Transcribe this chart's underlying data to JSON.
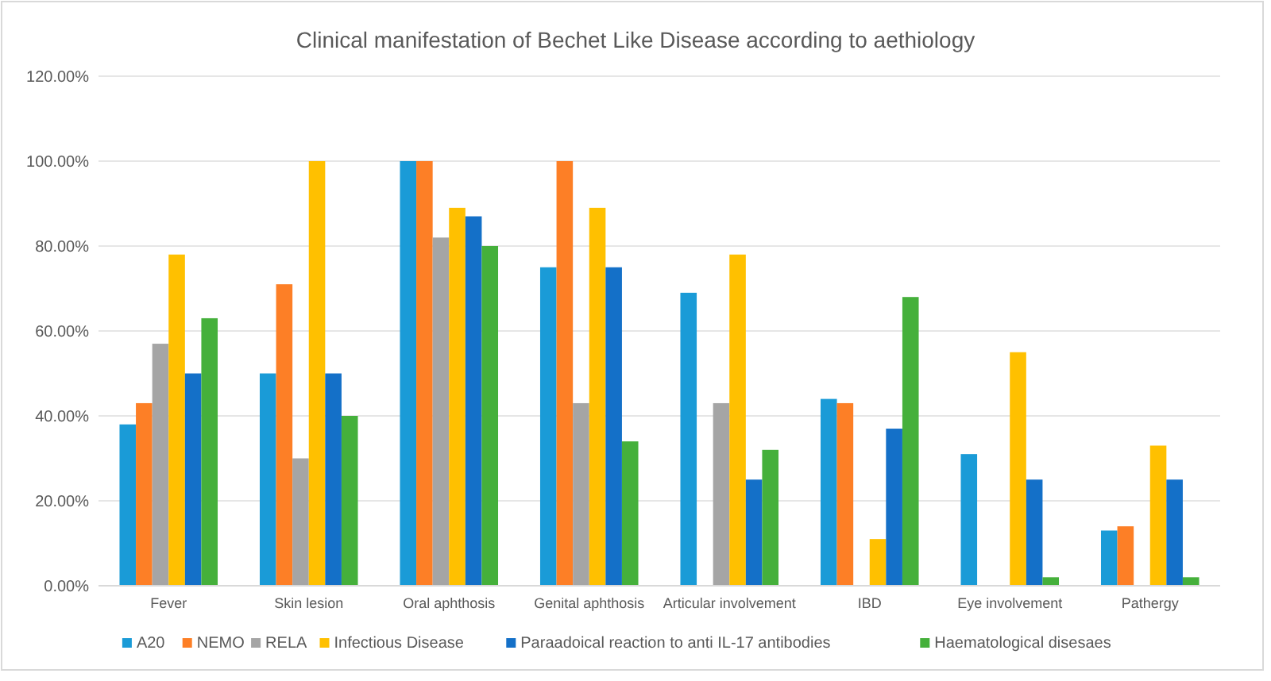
{
  "chart_data": {
    "type": "bar",
    "title": "Clinical manifestation of Bechet Like Disease according to aethiology",
    "categories": [
      "Fever",
      "Skin lesion",
      "Oral aphthosis",
      "Genital aphthosis",
      "Articular involvement",
      "IBD",
      "Eye involvement",
      "Pathergy"
    ],
    "series": [
      {
        "name": "A20",
        "color": "#1a9bd7",
        "values": [
          38,
          50,
          100,
          75,
          69,
          44,
          31,
          13
        ]
      },
      {
        "name": "NEMO",
        "color": "#fd7f26",
        "values": [
          43,
          71,
          100,
          100,
          0,
          43,
          0,
          14
        ]
      },
      {
        "name": "RELA",
        "color": "#a5a5a5",
        "values": [
          57,
          30,
          82,
          43,
          43,
          0,
          0,
          0
        ]
      },
      {
        "name": "Infectious Disease",
        "color": "#ffc000",
        "values": [
          78,
          100,
          89,
          89,
          78,
          11,
          55,
          33
        ]
      },
      {
        "name": "Paraadoical reaction to anti IL-17 antibodies",
        "color": "#1470c8",
        "values": [
          50,
          50,
          87,
          75,
          25,
          37,
          25,
          25
        ]
      },
      {
        "name": "Haematological disesaes",
        "color": "#45b03b",
        "values": [
          63,
          40,
          80,
          34,
          32,
          68,
          2,
          2
        ]
      }
    ],
    "ylim": [
      0,
      120
    ],
    "yticks": [
      {
        "value": 0,
        "label": "0.00%"
      },
      {
        "value": 20,
        "label": "20.00%"
      },
      {
        "value": 40,
        "label": "40.00%"
      },
      {
        "value": 60,
        "label": "60.00%"
      },
      {
        "value": 80,
        "label": "80.00%"
      },
      {
        "value": 100,
        "label": "100.00%"
      },
      {
        "value": 120,
        "label": "120.00%"
      }
    ],
    "grid": "y",
    "legend": "bottom"
  }
}
